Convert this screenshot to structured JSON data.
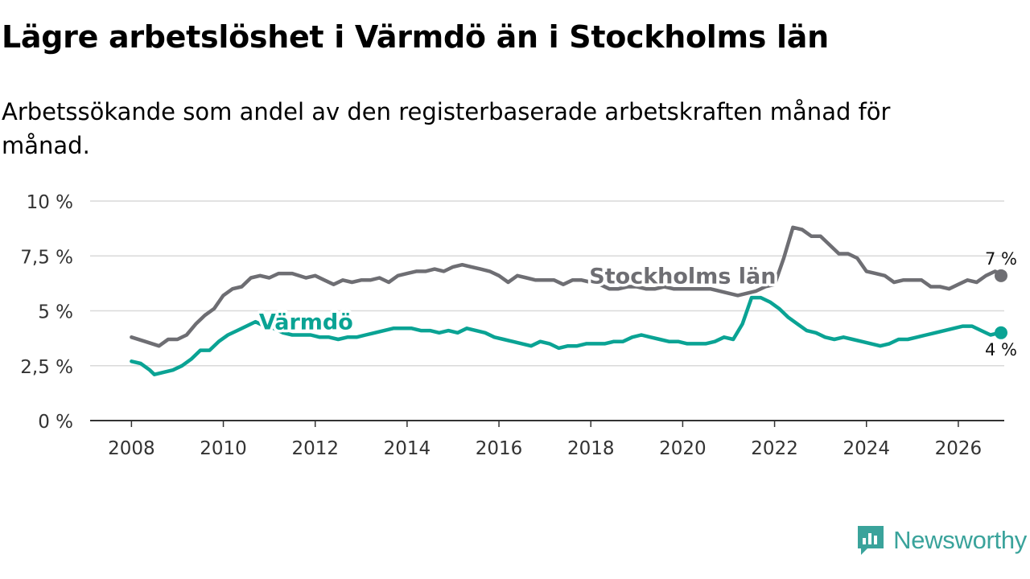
{
  "title": "Lägre arbetslöshet i Värmdö än i Stockholms län",
  "subtitle": "Arbetssökande som andel av den registerbaserade arbetskraften månad för månad.",
  "brand": {
    "name": "Newsworthy",
    "icon": "newsworthy-logo-icon",
    "color": "#3aa39b"
  },
  "chart_data": {
    "type": "line",
    "title": "Lägre arbetslöshet i Värmdö än i Stockholms län",
    "xlabel": "",
    "ylabel": "",
    "xlim": [
      2007.1,
      2027.0
    ],
    "ylim": [
      0,
      10
    ],
    "grid": true,
    "y_ticks": [
      {
        "value": 0,
        "label": "0 %"
      },
      {
        "value": 2.5,
        "label": "2,5 %"
      },
      {
        "value": 5,
        "label": "5 %"
      },
      {
        "value": 7.5,
        "label": "7,5 %"
      },
      {
        "value": 10,
        "label": "10 %"
      }
    ],
    "x_ticks": [
      {
        "value": 2008,
        "label": "2008"
      },
      {
        "value": 2010,
        "label": "2010"
      },
      {
        "value": 2012,
        "label": "2012"
      },
      {
        "value": 2014,
        "label": "2014"
      },
      {
        "value": 2016,
        "label": "2016"
      },
      {
        "value": 2018,
        "label": "2018"
      },
      {
        "value": 2020,
        "label": "2020"
      },
      {
        "value": 2022,
        "label": "2022"
      },
      {
        "value": 2024,
        "label": "2024"
      },
      {
        "value": 2026,
        "label": "2026"
      }
    ],
    "series": [
      {
        "name": "Stockholms län",
        "color": "#6e6e73",
        "end_label": "7 %",
        "points": [
          [
            2008.0,
            3.8
          ],
          [
            2008.3,
            3.6
          ],
          [
            2008.6,
            3.4
          ],
          [
            2008.8,
            3.7
          ],
          [
            2009.0,
            3.7
          ],
          [
            2009.2,
            3.9
          ],
          [
            2009.4,
            4.4
          ],
          [
            2009.6,
            4.8
          ],
          [
            2009.8,
            5.1
          ],
          [
            2010.0,
            5.7
          ],
          [
            2010.2,
            6.0
          ],
          [
            2010.4,
            6.1
          ],
          [
            2010.6,
            6.5
          ],
          [
            2010.8,
            6.6
          ],
          [
            2011.0,
            6.5
          ],
          [
            2011.2,
            6.7
          ],
          [
            2011.5,
            6.7
          ],
          [
            2011.8,
            6.5
          ],
          [
            2012.0,
            6.6
          ],
          [
            2012.2,
            6.4
          ],
          [
            2012.4,
            6.2
          ],
          [
            2012.6,
            6.4
          ],
          [
            2012.8,
            6.3
          ],
          [
            2013.0,
            6.4
          ],
          [
            2013.2,
            6.4
          ],
          [
            2013.4,
            6.5
          ],
          [
            2013.6,
            6.3
          ],
          [
            2013.8,
            6.6
          ],
          [
            2014.0,
            6.7
          ],
          [
            2014.2,
            6.8
          ],
          [
            2014.4,
            6.8
          ],
          [
            2014.6,
            6.9
          ],
          [
            2014.8,
            6.8
          ],
          [
            2015.0,
            7.0
          ],
          [
            2015.2,
            7.1
          ],
          [
            2015.4,
            7.0
          ],
          [
            2015.6,
            6.9
          ],
          [
            2015.8,
            6.8
          ],
          [
            2016.0,
            6.6
          ],
          [
            2016.2,
            6.3
          ],
          [
            2016.4,
            6.6
          ],
          [
            2016.6,
            6.5
          ],
          [
            2016.8,
            6.4
          ],
          [
            2017.0,
            6.4
          ],
          [
            2017.2,
            6.4
          ],
          [
            2017.4,
            6.2
          ],
          [
            2017.6,
            6.4
          ],
          [
            2017.8,
            6.4
          ],
          [
            2018.0,
            6.3
          ],
          [
            2018.2,
            6.2
          ],
          [
            2018.4,
            6.0
          ],
          [
            2018.6,
            6.0
          ],
          [
            2018.8,
            6.1
          ],
          [
            2019.0,
            6.1
          ],
          [
            2019.2,
            6.0
          ],
          [
            2019.4,
            6.0
          ],
          [
            2019.6,
            6.1
          ],
          [
            2019.8,
            6.0
          ],
          [
            2020.0,
            6.0
          ],
          [
            2020.2,
            6.0
          ],
          [
            2020.4,
            6.0
          ],
          [
            2020.6,
            6.0
          ],
          [
            2020.8,
            5.9
          ],
          [
            2021.0,
            5.8
          ],
          [
            2021.2,
            5.7
          ],
          [
            2021.4,
            5.8
          ],
          [
            2021.6,
            5.9
          ],
          [
            2021.8,
            6.1
          ],
          [
            2022.0,
            6.2
          ],
          [
            2022.2,
            7.4
          ],
          [
            2022.4,
            8.8
          ],
          [
            2022.6,
            8.7
          ],
          [
            2022.8,
            8.4
          ],
          [
            2023.0,
            8.4
          ],
          [
            2023.2,
            8.0
          ],
          [
            2023.4,
            7.6
          ],
          [
            2023.6,
            7.6
          ],
          [
            2023.8,
            7.4
          ],
          [
            2024.0,
            6.8
          ],
          [
            2024.2,
            6.7
          ],
          [
            2024.4,
            6.6
          ],
          [
            2024.6,
            6.3
          ],
          [
            2024.8,
            6.4
          ],
          [
            2025.0,
            6.4
          ],
          [
            2025.2,
            6.4
          ],
          [
            2025.4,
            6.1
          ],
          [
            2025.6,
            6.1
          ],
          [
            2025.8,
            6.0
          ],
          [
            2026.0,
            6.2
          ],
          [
            2026.2,
            6.4
          ],
          [
            2026.4,
            6.3
          ],
          [
            2026.6,
            6.6
          ],
          [
            2026.8,
            6.8
          ],
          [
            2027.0,
            6.6
          ]
        ]
      },
      {
        "name": "Värmdö",
        "color": "#0aa394",
        "end_label": "4 %",
        "points": [
          [
            2008.0,
            2.7
          ],
          [
            2008.2,
            2.6
          ],
          [
            2008.4,
            2.3
          ],
          [
            2008.5,
            2.1
          ],
          [
            2008.7,
            2.2
          ],
          [
            2008.9,
            2.3
          ],
          [
            2009.1,
            2.5
          ],
          [
            2009.3,
            2.8
          ],
          [
            2009.5,
            3.2
          ],
          [
            2009.7,
            3.2
          ],
          [
            2009.9,
            3.6
          ],
          [
            2010.1,
            3.9
          ],
          [
            2010.3,
            4.1
          ],
          [
            2010.5,
            4.3
          ],
          [
            2010.7,
            4.5
          ],
          [
            2010.9,
            4.3
          ],
          [
            2011.1,
            4.2
          ],
          [
            2011.3,
            4.0
          ],
          [
            2011.5,
            3.9
          ],
          [
            2011.7,
            3.9
          ],
          [
            2011.9,
            3.9
          ],
          [
            2012.1,
            3.8
          ],
          [
            2012.3,
            3.8
          ],
          [
            2012.5,
            3.7
          ],
          [
            2012.7,
            3.8
          ],
          [
            2012.9,
            3.8
          ],
          [
            2013.1,
            3.9
          ],
          [
            2013.3,
            4.0
          ],
          [
            2013.5,
            4.1
          ],
          [
            2013.7,
            4.2
          ],
          [
            2013.9,
            4.2
          ],
          [
            2014.1,
            4.2
          ],
          [
            2014.3,
            4.1
          ],
          [
            2014.5,
            4.1
          ],
          [
            2014.7,
            4.0
          ],
          [
            2014.9,
            4.1
          ],
          [
            2015.1,
            4.0
          ],
          [
            2015.3,
            4.2
          ],
          [
            2015.5,
            4.1
          ],
          [
            2015.7,
            4.0
          ],
          [
            2015.9,
            3.8
          ],
          [
            2016.1,
            3.7
          ],
          [
            2016.3,
            3.6
          ],
          [
            2016.5,
            3.5
          ],
          [
            2016.7,
            3.4
          ],
          [
            2016.9,
            3.6
          ],
          [
            2017.1,
            3.5
          ],
          [
            2017.3,
            3.3
          ],
          [
            2017.5,
            3.4
          ],
          [
            2017.7,
            3.4
          ],
          [
            2017.9,
            3.5
          ],
          [
            2018.1,
            3.5
          ],
          [
            2018.3,
            3.5
          ],
          [
            2018.5,
            3.6
          ],
          [
            2018.7,
            3.6
          ],
          [
            2018.9,
            3.8
          ],
          [
            2019.1,
            3.9
          ],
          [
            2019.3,
            3.8
          ],
          [
            2019.5,
            3.7
          ],
          [
            2019.7,
            3.6
          ],
          [
            2019.9,
            3.6
          ],
          [
            2020.1,
            3.5
          ],
          [
            2020.3,
            3.5
          ],
          [
            2020.5,
            3.5
          ],
          [
            2020.7,
            3.6
          ],
          [
            2020.9,
            3.8
          ],
          [
            2021.1,
            3.7
          ],
          [
            2021.3,
            4.4
          ],
          [
            2021.5,
            5.6
          ],
          [
            2021.7,
            5.6
          ],
          [
            2021.9,
            5.4
          ],
          [
            2022.1,
            5.1
          ],
          [
            2022.3,
            4.7
          ],
          [
            2022.5,
            4.4
          ],
          [
            2022.7,
            4.1
          ],
          [
            2022.9,
            4.0
          ],
          [
            2023.1,
            3.8
          ],
          [
            2023.3,
            3.7
          ],
          [
            2023.5,
            3.8
          ],
          [
            2023.7,
            3.7
          ],
          [
            2023.9,
            3.6
          ],
          [
            2024.1,
            3.5
          ],
          [
            2024.3,
            3.4
          ],
          [
            2024.5,
            3.5
          ],
          [
            2024.7,
            3.7
          ],
          [
            2024.9,
            3.7
          ],
          [
            2025.1,
            3.8
          ],
          [
            2025.3,
            3.9
          ],
          [
            2025.5,
            4.0
          ],
          [
            2025.7,
            4.1
          ],
          [
            2025.9,
            4.2
          ],
          [
            2026.1,
            4.3
          ],
          [
            2026.3,
            4.3
          ],
          [
            2026.5,
            4.1
          ],
          [
            2026.7,
            3.9
          ],
          [
            2026.9,
            4.0
          ],
          [
            2027.0,
            4.0
          ]
        ]
      }
    ]
  }
}
